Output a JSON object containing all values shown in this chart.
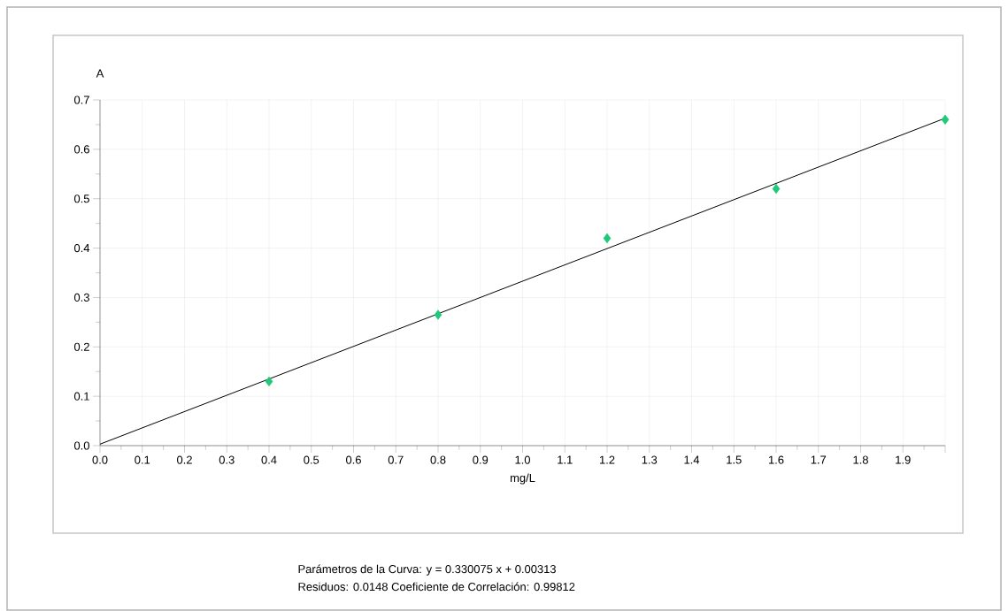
{
  "chart_data": {
    "type": "scatter",
    "xlabel": "mg/L",
    "ylabel": "A",
    "series": [
      {
        "color": "#1ec97a",
        "marker": "diamond",
        "x": [
          0.4,
          0.8,
          1.2,
          1.6,
          2.0
        ],
        "values": [
          0.13,
          0.265,
          0.42,
          0.52,
          0.66
        ]
      },
      {
        "type": "line",
        "color": "#000000",
        "marker": "none",
        "x": [
          0.0,
          2.0
        ],
        "values": [
          0.003,
          0.663
        ]
      }
    ],
    "xlim": [
      0.0,
      2.0
    ],
    "ylim": [
      0.0,
      0.7
    ],
    "xticks": [
      {
        "value": 0.0,
        "label": "0.0"
      },
      0.1,
      0.2,
      0.3,
      0.4,
      0.5,
      0.6,
      0.7,
      0.8,
      0.9,
      {
        "value": 1.0,
        "label": "1.0"
      },
      1.1,
      1.2,
      1.3,
      1.4,
      1.5,
      1.6,
      1.7,
      1.8,
      1.9,
      {
        "value": 2.0,
        "label": null
      }
    ],
    "yticks": [
      {
        "value": 0.0,
        "label": "0.0"
      },
      0.1,
      0.2,
      0.3,
      0.4,
      0.5,
      0.6,
      0.7
    ],
    "grid": true,
    "annotations": [
      "Parámetros de la Curva: y  =  0.330075 x  +  0.00313",
      "Residuos: 0.0148     Coeficiente de Correlación: 0.99812"
    ]
  }
}
